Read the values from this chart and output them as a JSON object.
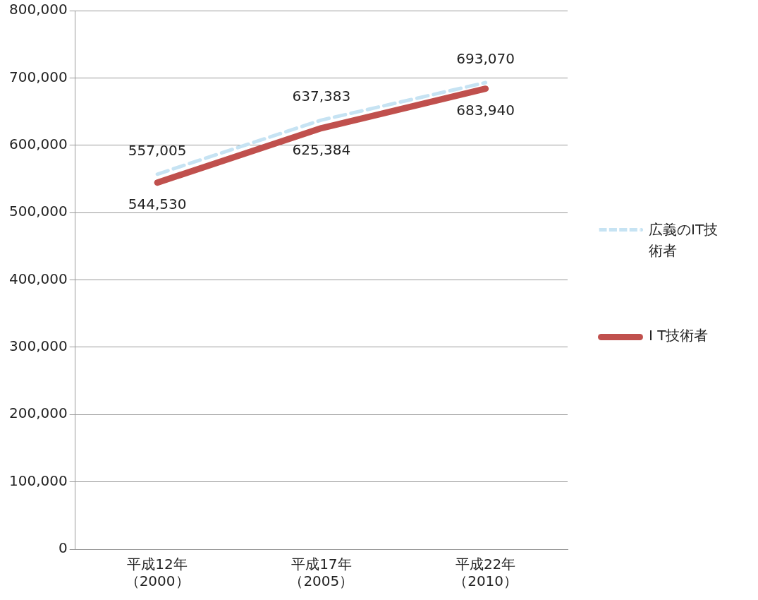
{
  "chart_data": {
    "type": "line",
    "categories": [
      "平成12年（2000）",
      "平成17年（2005）",
      "平成22年（2010）"
    ],
    "series": [
      {
        "name": "広義のIT技術者",
        "color": "#c6e3f3",
        "line_style": "dashed",
        "values": [
          557005,
          637383,
          693070
        ],
        "value_labels": [
          "557,005",
          "637,383",
          "693,070"
        ]
      },
      {
        "name": "I T技術者",
        "color": "#c0504d",
        "line_style": "solid",
        "values": [
          544530,
          625384,
          683940
        ],
        "value_labels": [
          "544,530",
          "625,384",
          "683,940"
        ]
      }
    ],
    "ylim": [
      0,
      800000
    ],
    "yticks": [
      {
        "value": 0,
        "label": "0"
      },
      {
        "value": 100000,
        "label": "100,000"
      },
      {
        "value": 200000,
        "label": "200,000"
      },
      {
        "value": 300000,
        "label": "300,000"
      },
      {
        "value": 400000,
        "label": "400,000"
      },
      {
        "value": 500000,
        "label": "500,000"
      },
      {
        "value": 600000,
        "label": "600,000"
      },
      {
        "value": 700000,
        "label": "700,000"
      },
      {
        "value": 800000,
        "label": "800,000"
      }
    ],
    "grid": "y",
    "legend": "right",
    "marker": "none"
  }
}
